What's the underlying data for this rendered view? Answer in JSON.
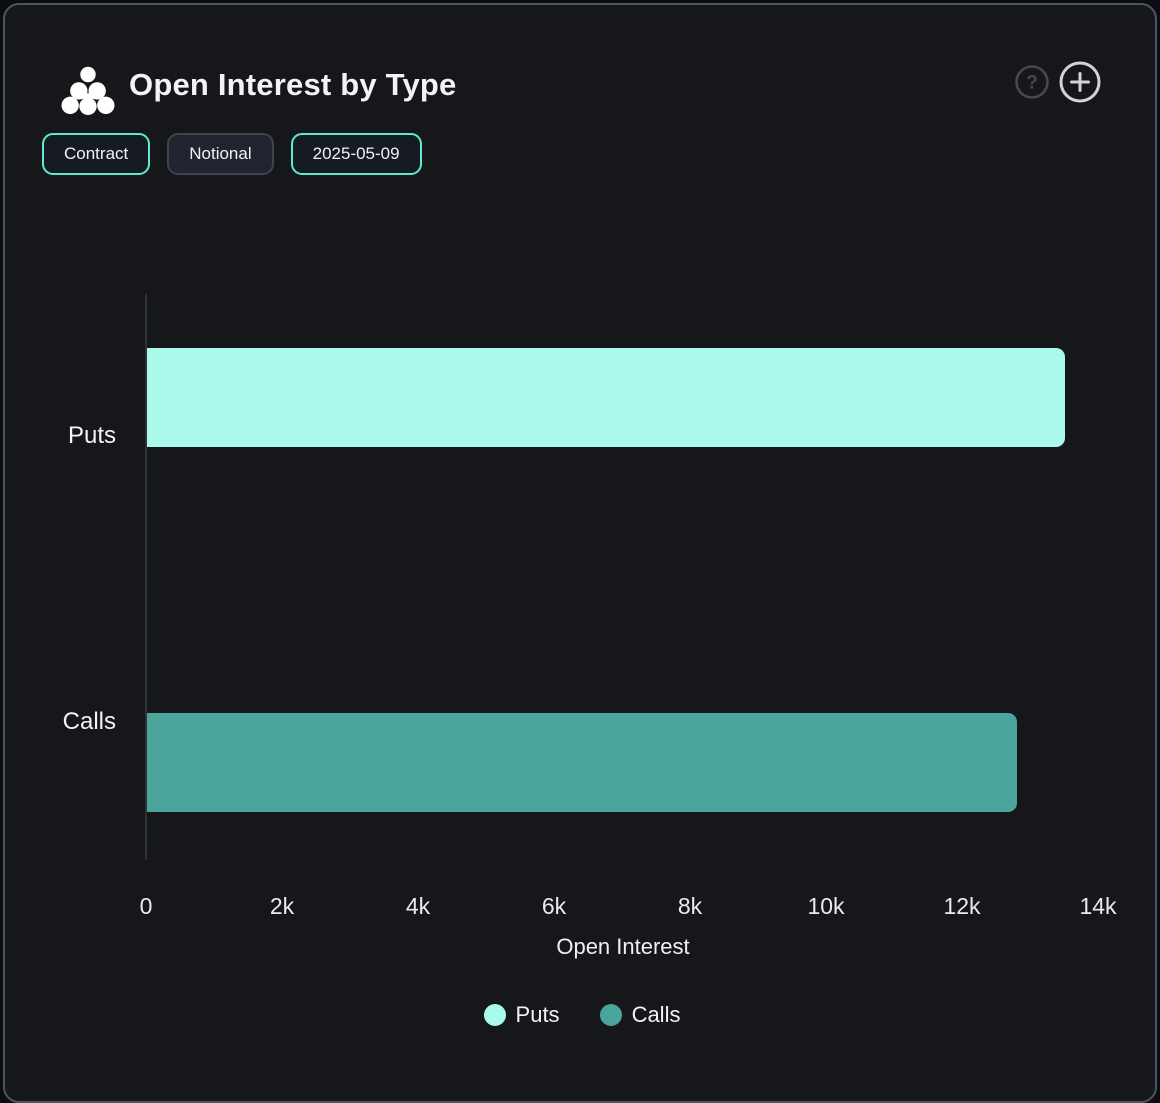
{
  "panel": {
    "title": "Open Interest by Type"
  },
  "header_icons": {
    "help": "?",
    "add": "+"
  },
  "toolbar": {
    "buttons": [
      {
        "label": "Contract",
        "active": true
      },
      {
        "label": "Notional",
        "active": false
      },
      {
        "label": "2025-05-09",
        "active": true
      }
    ]
  },
  "chart_data": {
    "type": "bar",
    "orientation": "horizontal",
    "title": "Open Interest by Type",
    "categories": [
      "Puts",
      "Calls"
    ],
    "values": [
      13500,
      12800
    ],
    "xlabel": "Open Interest",
    "ylabel": "",
    "xlim": [
      0,
      14000
    ],
    "xticks": [
      {
        "label": "0",
        "value": 0
      },
      {
        "label": "2k",
        "value": 2000
      },
      {
        "label": "4k",
        "value": 4000
      },
      {
        "label": "6k",
        "value": 6000
      },
      {
        "label": "8k",
        "value": 8000
      },
      {
        "label": "10k",
        "value": 10000
      },
      {
        "label": "12k",
        "value": 12000
      },
      {
        "label": "14k",
        "value": 14000
      }
    ],
    "grid": false,
    "legend": {
      "position": "bottom",
      "entries": [
        {
          "label": "Puts",
          "color": "#aafaec"
        },
        {
          "label": "Calls",
          "color": "#4ba59c"
        }
      ]
    }
  },
  "colors": {
    "background": "#15171a",
    "panel_border": "#4d5464",
    "accent_teal": "#5fe9d1",
    "puts_bar": "#aafaec",
    "calls_bar": "#4ba59c",
    "text": "#f2f3f4"
  }
}
